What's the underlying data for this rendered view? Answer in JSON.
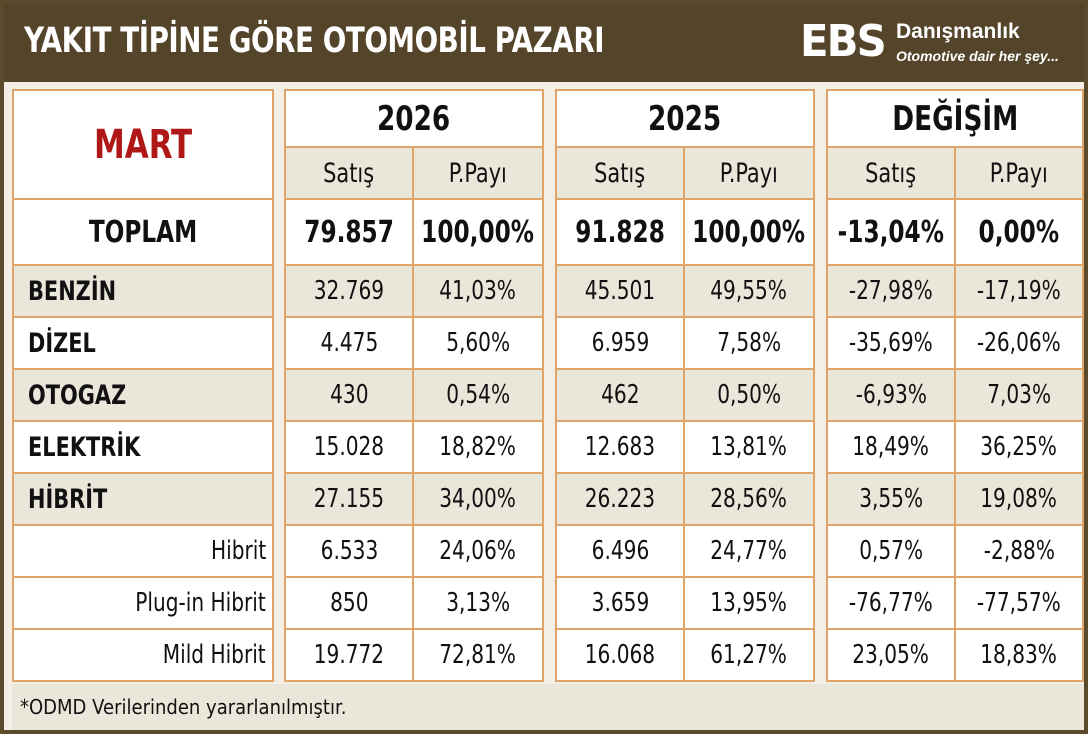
{
  "header": {
    "title": "YAKIT TİPİNE GÖRE OTOMOBİL PAZARI",
    "logo_ebs": "EBS",
    "logo_name": "Danışmanlık",
    "logo_tagline": "Otomotive dair her şey..."
  },
  "table": {
    "period": "MART",
    "groups": [
      "2026",
      "2025",
      "DEĞİŞİM"
    ],
    "subheaders": [
      "Satış",
      "P.Payı",
      "Satış",
      "P.Payı",
      "Satış",
      "P.Payı"
    ],
    "total": {
      "label": "TOPLAM",
      "values": [
        "79.857",
        "100,00%",
        "91.828",
        "100,00%",
        "-13,04%",
        "0,00%"
      ]
    },
    "rows": [
      {
        "label": "BENZİN",
        "values": [
          "32.769",
          "41,03%",
          "45.501",
          "49,55%",
          "-27,98%",
          "-17,19%"
        ]
      },
      {
        "label": "DİZEL",
        "values": [
          "4.475",
          "5,60%",
          "6.959",
          "7,58%",
          "-35,69%",
          "-26,06%"
        ]
      },
      {
        "label": "OTOGAZ",
        "values": [
          "430",
          "0,54%",
          "462",
          "0,50%",
          "-6,93%",
          "7,03%"
        ]
      },
      {
        "label": "ELEKTRİK",
        "values": [
          "15.028",
          "18,82%",
          "12.683",
          "13,81%",
          "18,49%",
          "36,25%"
        ]
      },
      {
        "label": "HİBRİT",
        "values": [
          "27.155",
          "34,00%",
          "26.223",
          "28,56%",
          "3,55%",
          "19,08%"
        ]
      },
      {
        "label": "Hibrit",
        "values": [
          "6.533",
          "24,06%",
          "6.496",
          "24,77%",
          "0,57%",
          "-2,88%"
        ]
      },
      {
        "label": "Plug-in Hibrit",
        "values": [
          "850",
          "3,13%",
          "3.659",
          "13,95%",
          "-76,77%",
          "-77,57%"
        ]
      },
      {
        "label": "Mild Hibrit",
        "values": [
          "19.772",
          "72,81%",
          "16.068",
          "61,27%",
          "23,05%",
          "18,83%"
        ]
      }
    ]
  },
  "footnote": "*ODMD Verilerinden yararlanılmıştır."
}
